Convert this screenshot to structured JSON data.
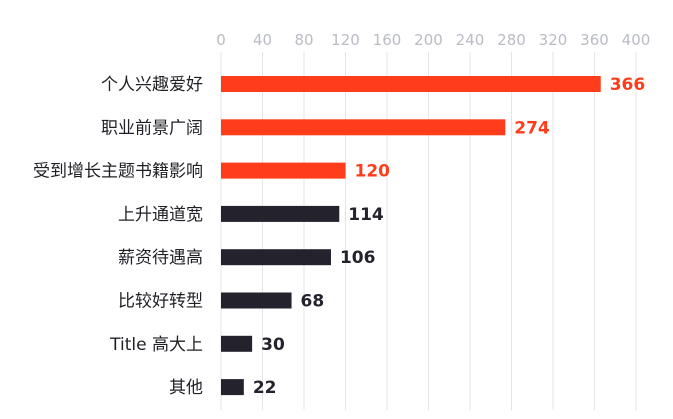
{
  "chart_data": {
    "type": "bar",
    "orientation": "horizontal",
    "title": "",
    "xlabel": "",
    "ylabel": "",
    "xlim": [
      0,
      400
    ],
    "x_ticks": [
      "0",
      "40",
      "80",
      "120",
      "160",
      "200",
      "240",
      "280",
      "320",
      "360",
      "400"
    ],
    "tick_position": "top",
    "grid": true,
    "categories": [
      "个人兴趣爱好",
      "职业前景广阔",
      "受到增长主题书籍影响",
      "上升通道宽",
      "薪资待遇高",
      "比较好转型",
      "Title 高大上",
      "其他"
    ],
    "values": [
      366,
      274,
      120,
      114,
      106,
      68,
      30,
      22
    ],
    "highlighted_count": 3,
    "colors": {
      "highlight": "#ff3d1a",
      "normal": "#24222c",
      "grid": "#e3e5ea",
      "tick_text": "#b9bcc4",
      "label_text": "#1f1f26"
    }
  }
}
